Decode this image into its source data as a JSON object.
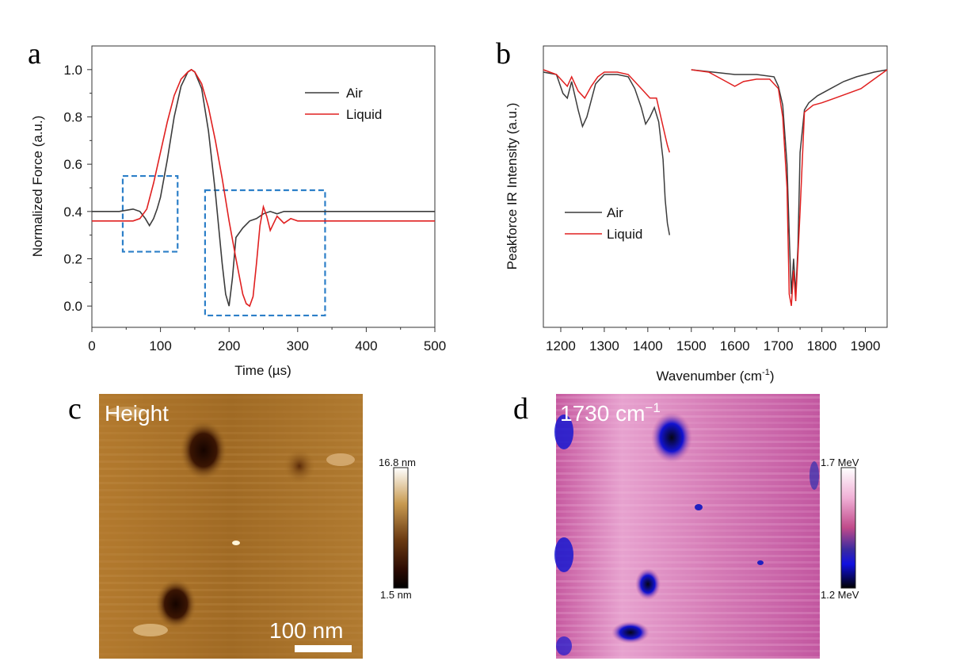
{
  "chart_data": [
    {
      "panel": "a",
      "type": "line",
      "xlabel": "Time (µs)",
      "ylabel": "Normalized Force (a.u.)",
      "xlim": [
        0,
        500
      ],
      "ylim": [
        -0.09,
        1.1
      ],
      "xticks": [
        "0",
        "100",
        "200",
        "300",
        "400",
        "500"
      ],
      "yticks": [
        "0.0",
        "0.2",
        "0.4",
        "0.6",
        "0.8",
        "1.0"
      ],
      "legend_position": "top-right",
      "colors": {
        "air": "#3c3c3c",
        "liquid": "#e02020",
        "box": "#2c7fc8"
      },
      "series": [
        {
          "name": "Air",
          "x": [
            0,
            20,
            40,
            60,
            70,
            78,
            84,
            90,
            95,
            100,
            110,
            120,
            130,
            140,
            145,
            150,
            160,
            170,
            180,
            190,
            195,
            200,
            205,
            210,
            220,
            230,
            240,
            250,
            260,
            270,
            280,
            300,
            350,
            400,
            450,
            500
          ],
          "y": [
            0.4,
            0.4,
            0.4,
            0.41,
            0.4,
            0.37,
            0.34,
            0.37,
            0.41,
            0.46,
            0.62,
            0.8,
            0.93,
            0.99,
            1.0,
            0.99,
            0.92,
            0.74,
            0.48,
            0.18,
            0.05,
            0.0,
            0.12,
            0.29,
            0.33,
            0.36,
            0.37,
            0.39,
            0.4,
            0.39,
            0.4,
            0.4,
            0.4,
            0.4,
            0.4,
            0.4
          ]
        },
        {
          "name": "Liquid",
          "x": [
            0,
            20,
            40,
            60,
            70,
            80,
            90,
            100,
            110,
            120,
            130,
            140,
            145,
            150,
            160,
            170,
            180,
            190,
            200,
            210,
            220,
            225,
            230,
            235,
            240,
            245,
            250,
            255,
            260,
            265,
            270,
            280,
            290,
            300,
            350,
            400,
            450,
            500
          ],
          "y": [
            0.36,
            0.36,
            0.36,
            0.36,
            0.37,
            0.41,
            0.52,
            0.65,
            0.78,
            0.89,
            0.96,
            0.99,
            1.0,
            0.99,
            0.94,
            0.84,
            0.7,
            0.54,
            0.36,
            0.2,
            0.05,
            0.01,
            0.0,
            0.04,
            0.18,
            0.34,
            0.42,
            0.38,
            0.32,
            0.35,
            0.38,
            0.35,
            0.37,
            0.36,
            0.36,
            0.36,
            0.36,
            0.36
          ]
        }
      ],
      "annotations": [
        {
          "shape": "dashed-box",
          "x": [
            45,
            125
          ],
          "y": [
            0.23,
            0.55
          ]
        },
        {
          "shape": "dashed-box",
          "x": [
            165,
            340
          ],
          "y": [
            -0.04,
            0.49
          ]
        }
      ]
    },
    {
      "panel": "b",
      "type": "line",
      "xlabel_main": "Wavenumber (cm",
      "xlabel_sup": "-1",
      "xlabel_end": ")",
      "ylabel": "Peakforce IR Intensity (a.u.)",
      "xlim": [
        1160,
        1950
      ],
      "xticks": [
        "1200",
        "1300",
        "1400",
        "1500",
        "1600",
        "1700",
        "1800",
        "1900"
      ],
      "legend_position": "center-left",
      "colors": {
        "air": "#3c3c3c",
        "liquid": "#e02020"
      },
      "series": [
        {
          "name": "Air",
          "segments": [
            {
              "x": [
                1160,
                1190,
                1205,
                1215,
                1225,
                1240,
                1250,
                1260,
                1280,
                1300,
                1330,
                1355,
                1370,
                1385,
                1395,
                1405,
                1415,
                1425,
                1435,
                1440,
                1445,
                1450
              ],
              "y": [
                0.99,
                0.98,
                0.9,
                0.88,
                0.95,
                0.83,
                0.76,
                0.8,
                0.94,
                0.98,
                0.98,
                0.97,
                0.92,
                0.84,
                0.77,
                0.8,
                0.84,
                0.78,
                0.62,
                0.45,
                0.35,
                0.3
              ]
            },
            {
              "x": [
                1500,
                1550,
                1600,
                1650,
                1690,
                1700,
                1710,
                1720,
                1726,
                1730,
                1735,
                1740,
                1745,
                1750,
                1760,
                1770,
                1790,
                1820,
                1850,
                1880,
                1920,
                1950
              ],
              "y": [
                1.0,
                0.99,
                0.98,
                0.98,
                0.97,
                0.93,
                0.85,
                0.6,
                0.25,
                0.05,
                0.2,
                0.05,
                0.25,
                0.65,
                0.83,
                0.86,
                0.89,
                0.92,
                0.95,
                0.97,
                0.99,
                1.0
              ]
            }
          ]
        },
        {
          "name": "Liquid",
          "segments": [
            {
              "x": [
                1160,
                1190,
                1205,
                1215,
                1225,
                1240,
                1255,
                1270,
                1285,
                1300,
                1330,
                1355,
                1370,
                1390,
                1405,
                1420,
                1430,
                1440,
                1445,
                1450
              ],
              "y": [
                1.0,
                0.98,
                0.95,
                0.93,
                0.97,
                0.91,
                0.88,
                0.93,
                0.97,
                0.99,
                0.99,
                0.98,
                0.95,
                0.91,
                0.88,
                0.88,
                0.8,
                0.72,
                0.68,
                0.65
              ]
            },
            {
              "x": [
                1500,
                1540,
                1580,
                1600,
                1620,
                1650,
                1680,
                1700,
                1710,
                1720,
                1725,
                1730,
                1735,
                1740,
                1750,
                1760,
                1780,
                1800,
                1830,
                1860,
                1890,
                1920,
                1950
              ],
              "y": [
                1.0,
                0.99,
                0.95,
                0.93,
                0.95,
                0.96,
                0.96,
                0.92,
                0.8,
                0.5,
                0.05,
                0.0,
                0.15,
                0.02,
                0.4,
                0.82,
                0.85,
                0.86,
                0.88,
                0.9,
                0.92,
                0.96,
                1.0
              ]
            }
          ]
        }
      ]
    }
  ],
  "panels": {
    "a": {
      "letter": "a"
    },
    "b": {
      "letter": "b"
    },
    "c": {
      "letter": "c",
      "title": "Height",
      "colorbar_max": "16.8 nm",
      "colorbar_min": "1.5 nm",
      "scalebar": "100 nm"
    },
    "d": {
      "letter": "d",
      "title_main": "1730 cm",
      "title_sup": "−1",
      "colorbar_max": "1.7 MeV",
      "colorbar_min": "1.2 MeV"
    }
  }
}
